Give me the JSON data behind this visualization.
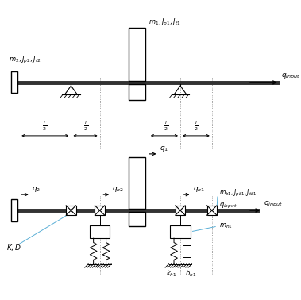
{
  "fig_width": 3.79,
  "fig_height": 3.78,
  "dpi": 100,
  "bg_color": "#ffffff",
  "lc": "#000000",
  "gc": "#777777",
  "bc": "#5bafd6"
}
